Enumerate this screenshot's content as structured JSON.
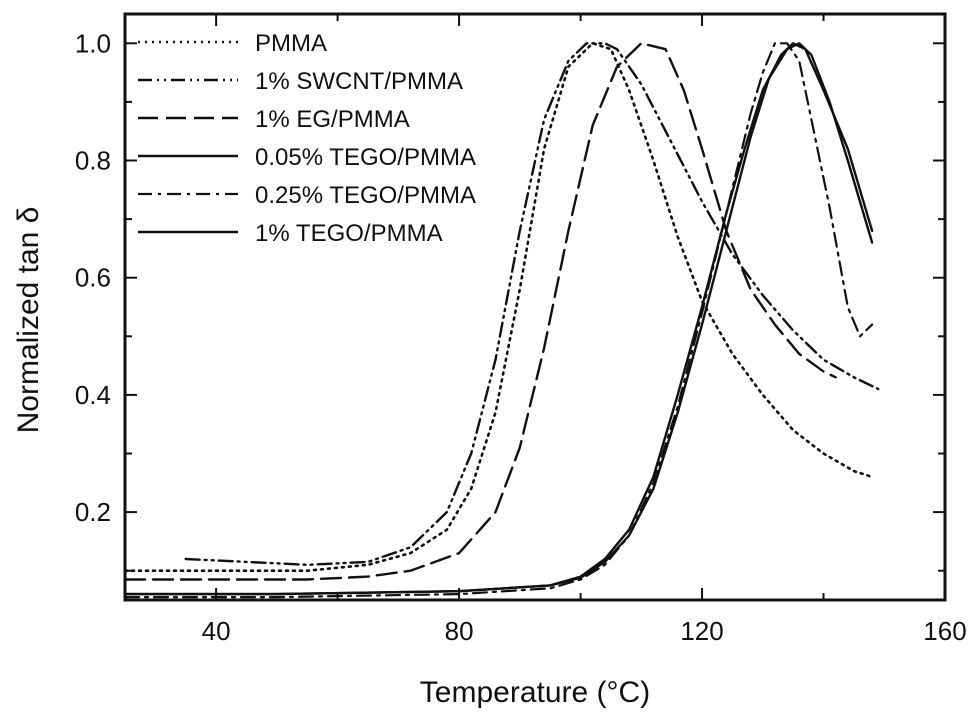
{
  "chart_data": {
    "type": "line",
    "xlabel": "Temperature (°C)",
    "ylabel": "Normalized tan δ",
    "xlim": [
      25,
      160
    ],
    "ylim": [
      0.05,
      1.05
    ],
    "x_ticks": [
      40,
      80,
      120,
      160
    ],
    "y_ticks": [
      0.2,
      0.4,
      0.6,
      0.8,
      1.0
    ],
    "x_tick_labels": [
      "40",
      "80",
      "120",
      "160"
    ],
    "y_tick_labels": [
      "0.2",
      "0.4",
      "0.6",
      "0.8",
      "1.0"
    ],
    "legend_position": "top-left",
    "grid": false,
    "series": [
      {
        "name": "PMMA",
        "style": "dotted",
        "color": "#111111",
        "x": [
          25,
          40,
          55,
          65,
          72,
          78,
          82,
          86,
          90,
          94,
          98,
          102,
          105,
          108,
          112,
          116,
          120,
          125,
          130,
          135,
          140,
          145,
          148
        ],
        "y": [
          0.1,
          0.1,
          0.1,
          0.11,
          0.13,
          0.17,
          0.24,
          0.37,
          0.58,
          0.82,
          0.96,
          1.0,
          0.99,
          0.92,
          0.8,
          0.67,
          0.56,
          0.47,
          0.4,
          0.34,
          0.3,
          0.27,
          0.26
        ]
      },
      {
        "name": "1% SWCNT/PMMA",
        "style": "dash-dot-dot",
        "color": "#111111",
        "x": [
          35,
          45,
          55,
          65,
          72,
          78,
          82,
          86,
          90,
          94,
          98,
          101,
          104,
          106,
          110,
          115,
          120,
          125,
          130,
          135,
          140,
          145,
          149
        ],
        "y": [
          0.12,
          0.115,
          0.11,
          0.115,
          0.14,
          0.2,
          0.3,
          0.46,
          0.68,
          0.87,
          0.97,
          1.0,
          1.0,
          0.99,
          0.93,
          0.83,
          0.73,
          0.64,
          0.57,
          0.51,
          0.46,
          0.43,
          0.41
        ]
      },
      {
        "name": "1% EG/PMMA",
        "style": "long-dash",
        "color": "#111111",
        "x": [
          25,
          40,
          55,
          65,
          72,
          80,
          86,
          90,
          94,
          98,
          102,
          106,
          110,
          114,
          117,
          120,
          124,
          128,
          132,
          136,
          140,
          142
        ],
        "y": [
          0.085,
          0.085,
          0.085,
          0.09,
          0.1,
          0.13,
          0.2,
          0.31,
          0.48,
          0.68,
          0.86,
          0.96,
          1.0,
          0.99,
          0.92,
          0.82,
          0.68,
          0.58,
          0.52,
          0.47,
          0.44,
          0.43
        ]
      },
      {
        "name": "0.05% TEGO/PMMA",
        "style": "solid",
        "color": "#111111",
        "x": [
          25,
          50,
          80,
          95,
          100,
          104,
          108,
          112,
          116,
          120,
          124,
          127,
          130,
          133,
          135,
          137,
          140,
          144,
          148
        ],
        "y": [
          0.06,
          0.06,
          0.065,
          0.075,
          0.09,
          0.12,
          0.17,
          0.26,
          0.4,
          0.55,
          0.71,
          0.82,
          0.92,
          0.98,
          1.0,
          0.99,
          0.92,
          0.82,
          0.68
        ]
      },
      {
        "name": "0.25% TEGO/PMMA",
        "style": "dash-dot",
        "color": "#111111",
        "x": [
          25,
          50,
          80,
          95,
          100,
          104,
          108,
          112,
          116,
          120,
          124,
          128,
          130,
          132,
          134,
          136,
          138,
          141,
          144,
          146,
          148
        ],
        "y": [
          0.055,
          0.055,
          0.06,
          0.07,
          0.085,
          0.11,
          0.16,
          0.25,
          0.38,
          0.54,
          0.71,
          0.88,
          0.95,
          1.0,
          1.0,
          0.97,
          0.87,
          0.72,
          0.55,
          0.5,
          0.52
        ]
      },
      {
        "name": "1% TEGO/PMMA",
        "style": "solid",
        "color": "#111111",
        "x": [
          25,
          50,
          80,
          95,
          100,
          104,
          108,
          112,
          116,
          120,
          124,
          128,
          131,
          134,
          136,
          138,
          141,
          144,
          148
        ],
        "y": [
          0.06,
          0.06,
          0.065,
          0.075,
          0.088,
          0.115,
          0.16,
          0.24,
          0.37,
          0.52,
          0.68,
          0.84,
          0.94,
          0.99,
          1.0,
          0.98,
          0.9,
          0.8,
          0.66
        ]
      }
    ]
  }
}
